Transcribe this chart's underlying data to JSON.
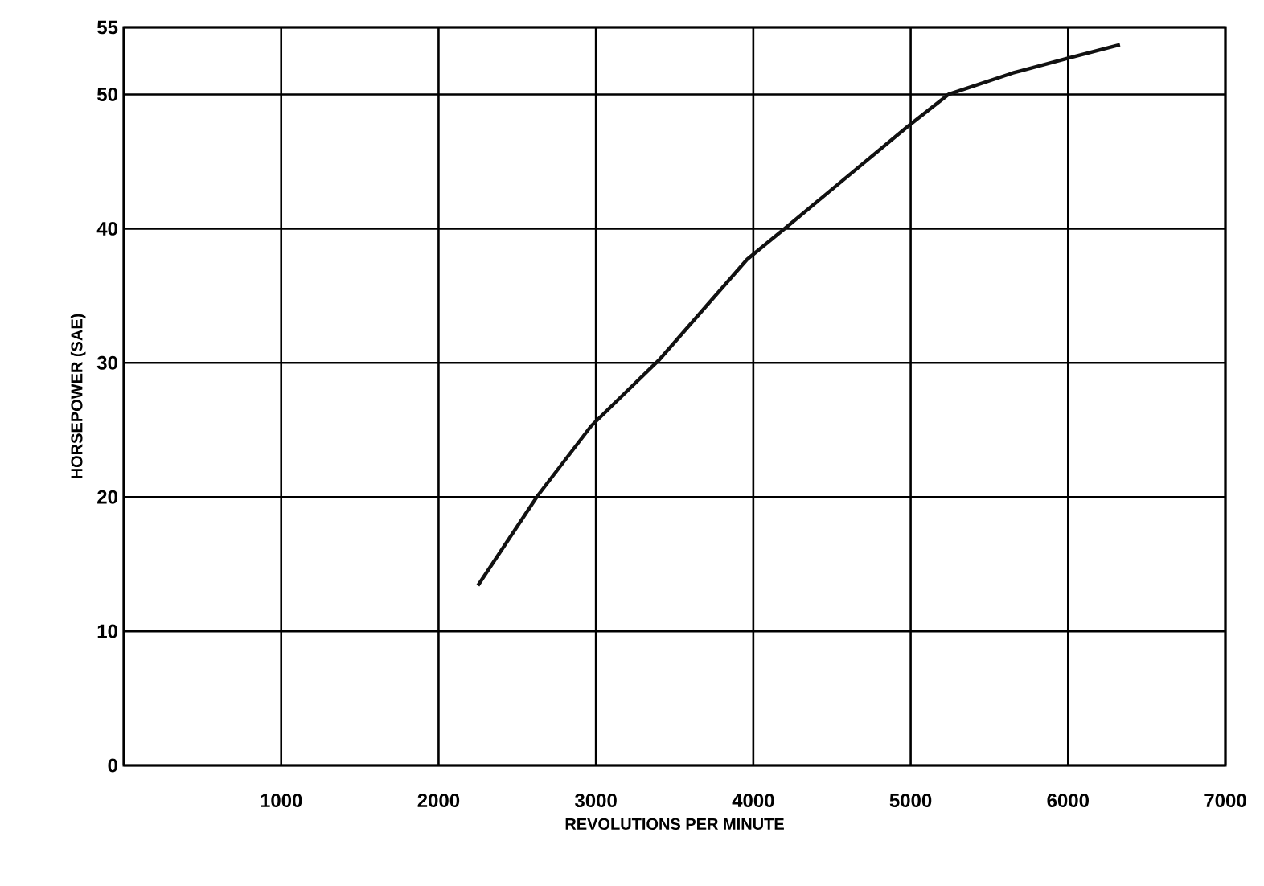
{
  "chart_data": {
    "type": "line",
    "xlabel": "REVOLUTIONS PER MINUTE",
    "ylabel": "HORSEPOWER (SAE)",
    "x": [
      2250,
      2630,
      2970,
      3400,
      3960,
      4240,
      4980,
      5240,
      5650,
      6000,
      6330
    ],
    "values": [
      13.4,
      20.1,
      25.3,
      30.2,
      37.7,
      40.4,
      47.6,
      50,
      51.6,
      52.7,
      53.7
    ],
    "color": "#111111",
    "xlim": [
      0,
      7000
    ],
    "ylim": [
      0,
      55
    ],
    "xticks": [
      {
        "value": 0,
        "label": null
      },
      1000,
      2000,
      3000,
      4000,
      5000,
      6000,
      7000
    ],
    "yticks": [
      0,
      10,
      20,
      30,
      40,
      50,
      55
    ],
    "grid": true,
    "marker": "none",
    "line_style": "solid"
  }
}
